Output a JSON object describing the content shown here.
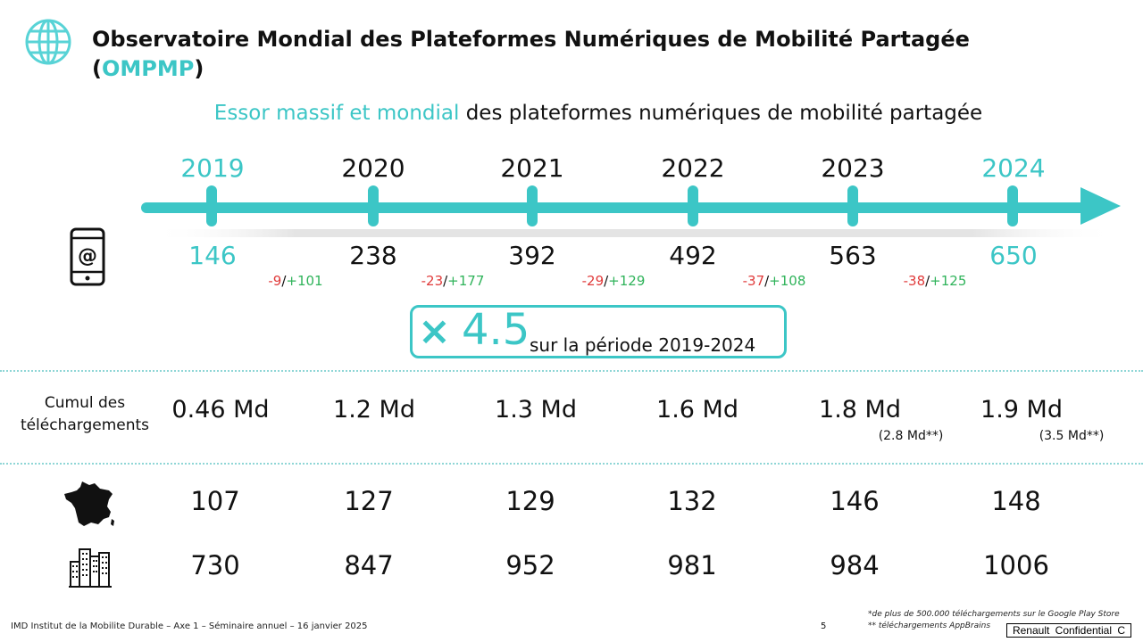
{
  "header": {
    "title_main": "Observatoire Mondial des Plateformes Numériques de Mobilité Partagée",
    "title_open": "(",
    "title_acronym": "OMPMP",
    "title_close": ")"
  },
  "subtitle": {
    "highlight": "Essor massif et mondial",
    "rest": " des plateformes numériques de mobilité partagée"
  },
  "timeline": {
    "years": [
      "2019",
      "2020",
      "2021",
      "2022",
      "2023",
      "2024"
    ],
    "platform_counts": [
      "146",
      "238",
      "392",
      "492",
      "563",
      "650"
    ],
    "deltas": [
      {
        "minus": "-9",
        "slash": "/",
        "plus": "+101"
      },
      {
        "minus": "-23",
        "slash": "/",
        "plus": "+177"
      },
      {
        "minus": "-29",
        "slash": "/",
        "plus": "+129"
      },
      {
        "minus": "-37",
        "slash": "/",
        "plus": "+108"
      },
      {
        "minus": "-38",
        "slash": "/",
        "plus": "+125"
      }
    ]
  },
  "multiplier": {
    "symbol": "×",
    "value": "4.5",
    "text": "sur la période 2019-2024"
  },
  "downloads": {
    "label_line1": "Cumul des",
    "label_line2": "téléchargements",
    "values": [
      "0.46 Md",
      "1.2 Md",
      "1.3 Md",
      "1.6 Md",
      "1.8 Md",
      "1.9 Md"
    ],
    "sub_2023": "(2.8 Md**)",
    "sub_2024": "(3.5 Md**)"
  },
  "france_row": [
    "107",
    "127",
    "129",
    "132",
    "146",
    "148"
  ],
  "cities_row": [
    "730",
    "847",
    "952",
    "981",
    "984",
    "1006"
  ],
  "icons": {
    "header": "globe-icon",
    "platforms": "smartphone-at-icon",
    "france": "france-map-icon",
    "cities": "city-buildings-icon"
  },
  "footer": {
    "left": "IMD Institut de la Mobilite Durable – Axe 1 – Séminaire annuel – 16 janvier 2025",
    "page": "5",
    "note1": "*de plus de 500.000 téléchargements sur le Google Play Store",
    "note2": "** téléchargements AppBrains",
    "confidential": "Renault Confidential C"
  },
  "colors": {
    "accent": "#3cc6c6",
    "negative": "#e03b3b",
    "positive": "#2fb35a"
  }
}
